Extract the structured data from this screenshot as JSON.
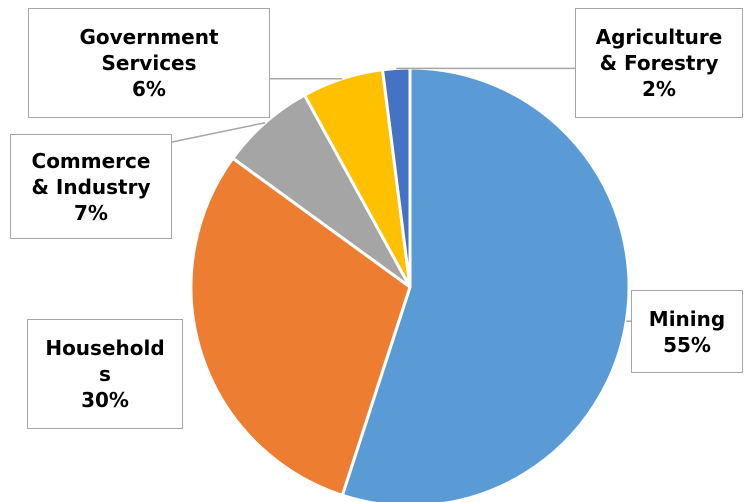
{
  "chart_data": {
    "type": "pie",
    "title": "",
    "slices": [
      {
        "label": "Mining",
        "display_label": "Mining",
        "value": 55,
        "percent_text": "55%",
        "color": "#5b9bd5"
      },
      {
        "label": "Households",
        "display_label": "Household\ns",
        "value": 30,
        "percent_text": "30%",
        "color": "#ed7d31"
      },
      {
        "label": "Commerce & Industry",
        "display_label": "Commerce\n& Industry",
        "value": 7,
        "percent_text": "7%",
        "color": "#a5a5a5"
      },
      {
        "label": "Government Services",
        "display_label": "Government\nServices",
        "value": 6,
        "percent_text": "6%",
        "color": "#ffc000"
      },
      {
        "label": "Agriculture & Forestry",
        "display_label": "Agriculture\n& Forestry",
        "value": 2,
        "percent_text": "2%",
        "color": "#4472c4"
      }
    ],
    "start_angle_deg": 0,
    "direction": "clockwise",
    "legend": "none",
    "data_labels": "callout",
    "border_color": "#ffffff",
    "leader_line_color": "#a6a6a6"
  }
}
